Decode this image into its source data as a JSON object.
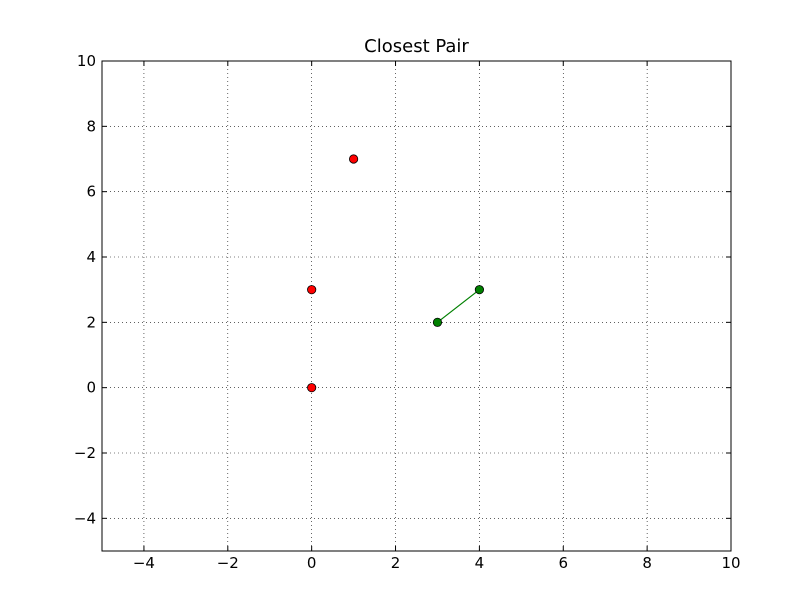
{
  "chart_data": {
    "type": "scatter",
    "title": "Closest Pair",
    "xlabel": "",
    "ylabel": "",
    "xlim": [
      -5,
      10
    ],
    "ylim": [
      -5,
      10
    ],
    "x_ticks": [
      -4,
      -2,
      0,
      2,
      4,
      6,
      8,
      10
    ],
    "y_ticks": [
      -4,
      -2,
      0,
      2,
      4,
      6,
      8,
      10
    ],
    "x_tick_labels": [
      "−4",
      "−2",
      "0",
      "2",
      "4",
      "6",
      "8",
      "10"
    ],
    "y_tick_labels": [
      "−4",
      "−2",
      "0",
      "2",
      "4",
      "6",
      "8",
      "10"
    ],
    "grid": true,
    "grid_style": "dotted",
    "series": [
      {
        "color": "#ff0000",
        "marker": "circle",
        "points": [
          {
            "x": 1,
            "y": 7
          },
          {
            "x": 0,
            "y": 3
          },
          {
            "x": 0,
            "y": 0
          }
        ]
      },
      {
        "color": "#008000",
        "marker": "circle",
        "connected": true,
        "points": [
          {
            "x": 3,
            "y": 2
          },
          {
            "x": 4,
            "y": 3
          }
        ]
      }
    ]
  }
}
